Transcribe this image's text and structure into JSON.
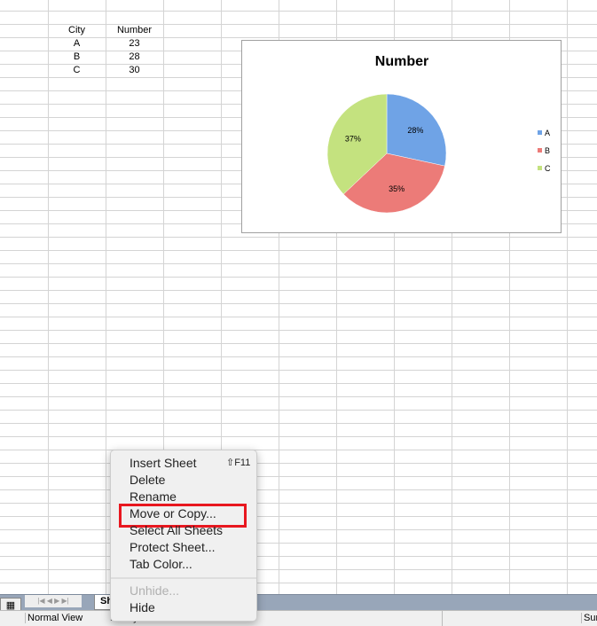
{
  "sheet": {
    "headers": [
      "City",
      "Number"
    ],
    "rows": [
      [
        "A",
        "23"
      ],
      [
        "B",
        "28"
      ],
      [
        "C",
        "30"
      ]
    ]
  },
  "chart_data": {
    "type": "pie",
    "title": "Number",
    "categories": [
      "A",
      "B",
      "C"
    ],
    "values": [
      23,
      28,
      30
    ],
    "data_labels": [
      "28%",
      "35%",
      "37%"
    ],
    "colors": [
      "#6fa3e6",
      "#ec7b78",
      "#c4e27f"
    ],
    "legend": "right"
  },
  "menu": {
    "items": [
      "Insert Sheet",
      "Delete",
      "Rename",
      "Move or Copy...",
      "Select All Sheets",
      "Protect Sheet...",
      "Tab Color...",
      "Unhide...",
      "Hide"
    ],
    "shortcut": "⇧F11",
    "highlight_color": "#e8171f"
  },
  "tabs": {
    "sheet_tab": "Sh"
  },
  "status": {
    "view": "Normal View",
    "state": "Ready",
    "sum": "Sum"
  }
}
